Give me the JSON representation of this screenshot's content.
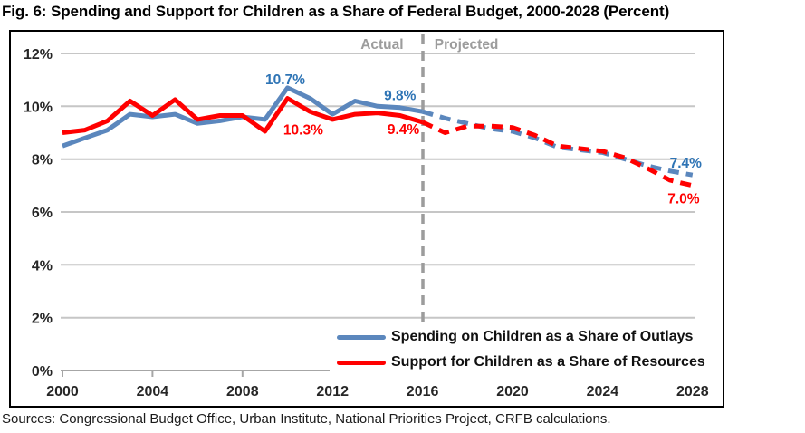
{
  "title": "Fig. 6: Spending and Support for Children as a Share of Federal Budget, 2000-2028 (Percent)",
  "sources": "Sources: Congressional Budget Office, Urban Institute, National Priorities Project, CRFB calculations.",
  "chart_data": {
    "type": "line",
    "title": "Spending and Support for Children as a Share of Federal Budget, 2000-2028 (Percent)",
    "x": [
      2000,
      2001,
      2002,
      2003,
      2004,
      2005,
      2006,
      2007,
      2008,
      2009,
      2010,
      2011,
      2012,
      2013,
      2014,
      2015,
      2016,
      2017,
      2018,
      2019,
      2020,
      2021,
      2022,
      2023,
      2024,
      2025,
      2026,
      2027,
      2028
    ],
    "x_tick_labels": [
      "2000",
      "2004",
      "2008",
      "2012",
      "2016",
      "2020",
      "2024",
      "2028"
    ],
    "y_tick_labels": [
      "0%",
      "2%",
      "4%",
      "6%",
      "8%",
      "10%",
      "12%"
    ],
    "ylim": [
      0,
      12
    ],
    "grid": true,
    "legend_position": "bottom-right",
    "divider_year": 2016,
    "actual_label": "Actual",
    "projected_label": "Projected",
    "series": [
      {
        "name": "Spending on Children as a Share of Outlays",
        "color": "#5b87bd",
        "label_color": "#2e74b5",
        "solid_until": 2016,
        "values": [
          8.5,
          8.8,
          9.1,
          9.7,
          9.6,
          9.7,
          9.35,
          9.45,
          9.6,
          9.5,
          10.7,
          10.3,
          9.7,
          10.2,
          10.0,
          9.95,
          9.8,
          9.55,
          9.35,
          9.15,
          9.05,
          8.8,
          8.45,
          8.35,
          8.25,
          8.0,
          7.75,
          7.55,
          7.4
        ]
      },
      {
        "name": "Support for Children as a Share of Resources",
        "color": "#ff0000",
        "label_color": "#ff0000",
        "solid_until": 2016,
        "values": [
          9.0,
          9.1,
          9.45,
          10.2,
          9.65,
          10.25,
          9.5,
          9.65,
          9.65,
          9.05,
          10.3,
          9.8,
          9.5,
          9.7,
          9.75,
          9.65,
          9.4,
          9.0,
          9.25,
          9.25,
          9.2,
          8.9,
          8.5,
          8.4,
          8.3,
          8.05,
          7.65,
          7.2,
          7.0
        ]
      }
    ],
    "annotations": [
      {
        "text": "10.7%",
        "color": "#2e74b5",
        "year": 2009.9,
        "value": 11.0
      },
      {
        "text": "9.8%",
        "color": "#2e74b5",
        "year": 2015.0,
        "value": 10.4
      },
      {
        "text": "7.4%",
        "color": "#2e74b5",
        "year": 2027.7,
        "value": 7.85
      },
      {
        "text": "10.3%",
        "color": "#ff0000",
        "year": 2010.7,
        "value": 9.1
      },
      {
        "text": "9.4%",
        "color": "#ff0000",
        "year": 2015.15,
        "value": 9.12
      },
      {
        "text": "7.0%",
        "color": "#ff0000",
        "year": 2027.6,
        "value": 6.5
      },
      {
        "text": "Actual",
        "color": "#9c9c9c",
        "year": 2014.2,
        "value": 12.34
      },
      {
        "text": "Projected",
        "color": "#9c9c9c",
        "year": 2017.95,
        "value": 12.34
      }
    ]
  }
}
